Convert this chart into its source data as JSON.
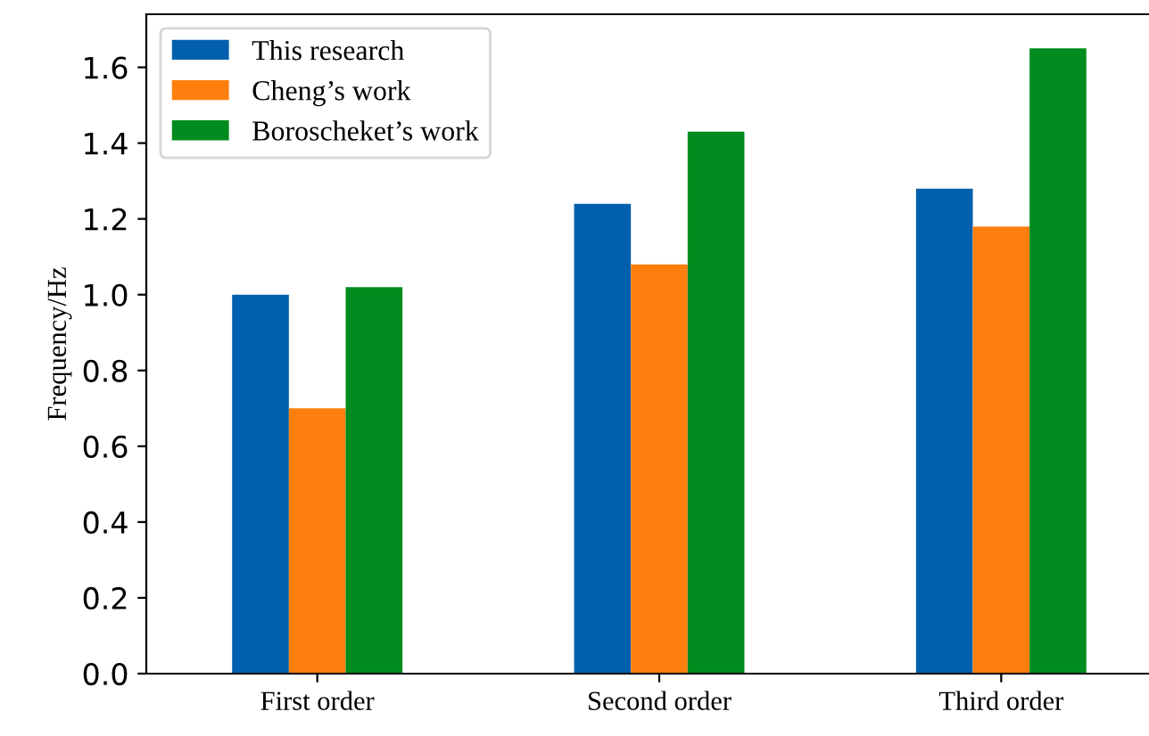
{
  "chart_data": {
    "type": "bar",
    "ylabel": "Frequency/Hz",
    "categories": [
      "First order",
      "Second order",
      "Third order"
    ],
    "series": [
      {
        "name": "This research",
        "color": "#0060ad",
        "values": [
          1.0,
          1.24,
          1.28
        ]
      },
      {
        "name": "Cheng’s work",
        "color": "#ff7f0e",
        "values": [
          0.7,
          1.08,
          1.18
        ]
      },
      {
        "name": "Boroscheket’s work",
        "color": "#008c1e",
        "values": [
          1.02,
          1.43,
          1.65
        ]
      }
    ],
    "ylim": [
      0,
      1.74
    ],
    "yticks": [
      {
        "value": 0,
        "label": "0.0"
      },
      0.2,
      0.4,
      0.6,
      0.8,
      {
        "value": 1,
        "label": "1.0"
      },
      1.2,
      1.4,
      1.6
    ],
    "legend": "top left",
    "grid": false
  }
}
